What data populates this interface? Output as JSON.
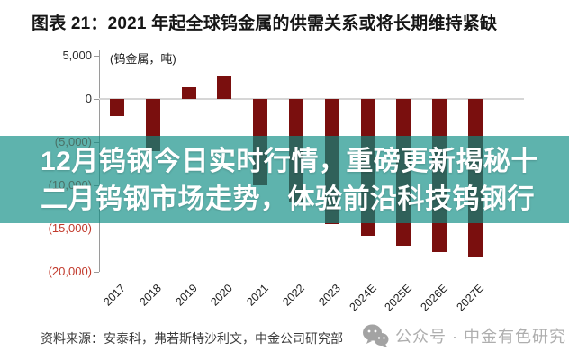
{
  "header": {
    "title": "图表 21：2021 年起全球钨金属的供需关系或将长期维持紧缺"
  },
  "chart_data": {
    "type": "bar",
    "title": "2021 年起全球钨金属的供需关系或将长期维持紧缺",
    "unit_label": "(钨金属，吨)",
    "categories": [
      "2017",
      "2018",
      "2019",
      "2020",
      "2021",
      "2022",
      "2023",
      "2024E",
      "2025E",
      "2026E",
      "2027E"
    ],
    "values": [
      -2000,
      -6000,
      1400,
      2600,
      -10000,
      -12000,
      -14500,
      -15800,
      -17000,
      -17700,
      -18300
    ],
    "ylim": [
      -20000,
      5000
    ],
    "yticks": [
      {
        "value": 5000,
        "label": "5,000",
        "color": "#2b2b2b"
      },
      {
        "value": 0,
        "label": "0",
        "color": "#2b2b2b"
      },
      {
        "value": -5000,
        "label": "(5,000)",
        "color": "#c23a2c"
      },
      {
        "value": -10000,
        "label": "(10,000)",
        "color": "#c23a2c"
      },
      {
        "value": -15000,
        "label": "(15,000)",
        "color": "#c23a2c"
      },
      {
        "value": -20000,
        "label": "(20,000)",
        "color": "#c23a2c"
      }
    ],
    "bar_color": "#7a0f0e",
    "grid": "zero-line-only",
    "legend": "none",
    "xlabel": "",
    "ylabel": "(钨金属，吨)"
  },
  "overlay": {
    "lines": [
      "12月钨钢今日实时行情，重磅更新揭秘十",
      "二月钨钢市场走势，体验前沿科技钨钢行"
    ],
    "band_color": "#0a8c83"
  },
  "footer": {
    "source": "资料来源：安泰科，弗若斯特沙利文，中金公司研究部",
    "watermark": "公众号 · 中金有色研究"
  }
}
